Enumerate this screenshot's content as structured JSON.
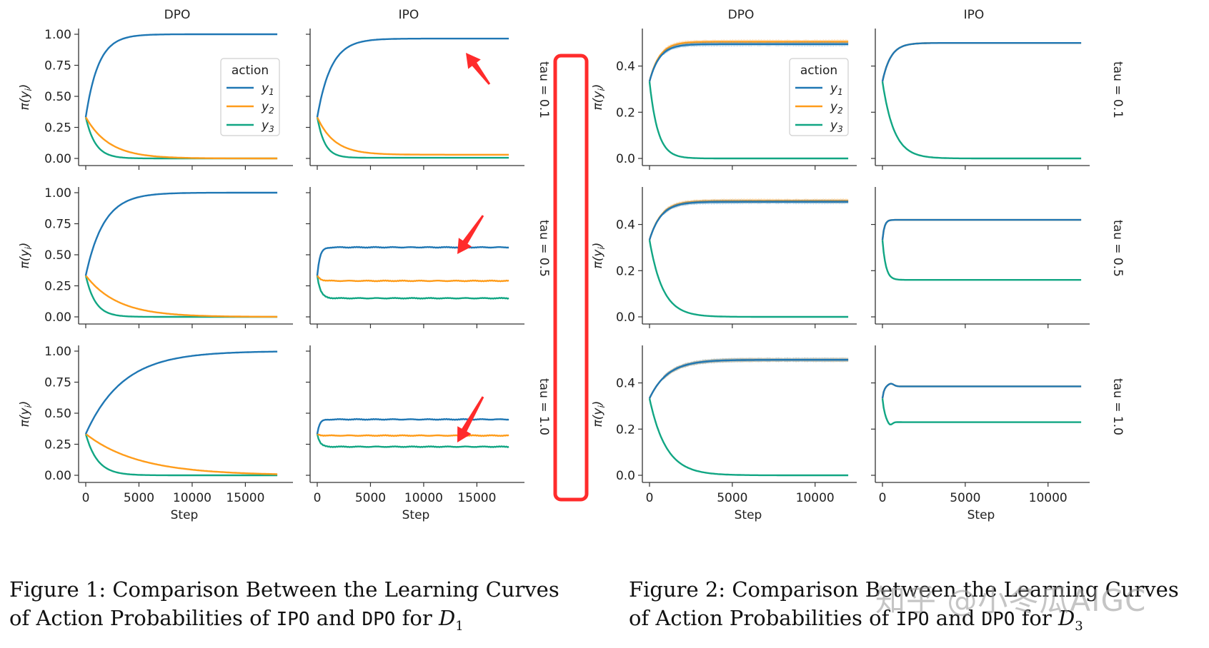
{
  "colors": {
    "y1": "#1f77b4",
    "y2": "#ff9c1a",
    "y3": "#11a683",
    "highlight": "#ff2b2b",
    "axis": "#333333"
  },
  "chart_data": [
    {
      "type": "line",
      "figure": "Figure 1",
      "columns": [
        "DPO",
        "IPO"
      ],
      "rows": [
        "tau = 0.1",
        "tau = 0.5",
        "tau = 1.0"
      ],
      "xlabel": "Step",
      "ylabel": "π(y_i)",
      "xlim": [
        0,
        18000
      ],
      "ylim": [
        0,
        1.0
      ],
      "xticks": [
        0,
        5000,
        10000,
        15000
      ],
      "yticks": [
        0.0,
        0.25,
        0.5,
        0.75,
        1.0
      ],
      "yticklabels": [
        "0.00",
        "0.25",
        "0.50",
        "0.75",
        "1.00"
      ],
      "legend": {
        "title": "action",
        "entries": [
          "y1",
          "y2",
          "y3"
        ],
        "placement": "top-right of row 1 DPO"
      },
      "series_names": [
        "y1",
        "y2",
        "y3"
      ],
      "initial": 0.333,
      "panels": [
        {
          "row": "tau = 0.1",
          "col": "DPO",
          "final": [
            1.0,
            0.0,
            0.0
          ],
          "tau_steps": [
            1200,
            2200,
            900
          ]
        },
        {
          "row": "tau = 0.1",
          "col": "IPO",
          "final": [
            0.965,
            0.03,
            0.005
          ],
          "tau_steps": [
            1300,
            1600,
            700
          ]
        },
        {
          "row": "tau = 0.5",
          "col": "DPO",
          "final": [
            1.0,
            0.0,
            0.0
          ],
          "tau_steps": [
            1700,
            3000,
            900
          ]
        },
        {
          "row": "tau = 0.5",
          "col": "IPO",
          "final": [
            0.56,
            0.29,
            0.15
          ],
          "tau_steps": [
            250,
            300,
            300
          ]
        },
        {
          "row": "tau = 1.0",
          "col": "DPO",
          "final": [
            1.0,
            0.0,
            0.0
          ],
          "tau_steps": [
            3500,
            5000,
            1100
          ]
        },
        {
          "row": "tau = 1.0",
          "col": "IPO",
          "final": [
            0.45,
            0.32,
            0.23
          ],
          "tau_steps": [
            220,
            250,
            250
          ]
        }
      ]
    },
    {
      "type": "line",
      "figure": "Figure 2",
      "columns": [
        "DPO",
        "IPO"
      ],
      "rows": [
        "tau = 0.1",
        "tau = 0.5",
        "tau = 1.0"
      ],
      "xlabel": "Step",
      "ylabel": "π(y_i)",
      "xlim": [
        0,
        12000
      ],
      "ylim": [
        0,
        0.5
      ],
      "xticks": [
        0,
        5000,
        10000
      ],
      "yticks": [
        0.0,
        0.2,
        0.4
      ],
      "yticklabels": [
        "0.0",
        "0.2",
        "0.4"
      ],
      "legend": {
        "title": "action",
        "entries": [
          "y1",
          "y2",
          "y3"
        ],
        "placement": "top-right of row 1 DPO"
      },
      "series_names": [
        "y1",
        "y2",
        "y3"
      ],
      "initial": 0.333,
      "panels": [
        {
          "row": "tau = 0.1",
          "col": "DPO",
          "final": [
            0.495,
            0.505,
            0.0
          ],
          "tau_steps": [
            600,
            600,
            500
          ]
        },
        {
          "row": "tau = 0.1",
          "col": "IPO",
          "final": [
            0.5,
            0.5,
            0.0
          ],
          "tau_steps": [
            500,
            500,
            700
          ]
        },
        {
          "row": "tau = 0.5",
          "col": "DPO",
          "final": [
            0.498,
            0.502,
            0.0
          ],
          "tau_steps": [
            700,
            700,
            800
          ]
        },
        {
          "row": "tau = 0.5",
          "col": "IPO",
          "final": [
            0.42,
            0.42,
            0.16
          ],
          "tau_steps": [
            120,
            120,
            200
          ]
        },
        {
          "row": "tau = 1.0",
          "col": "DPO",
          "final": [
            0.5,
            0.5,
            0.0
          ],
          "tau_steps": [
            1100,
            1100,
            1000
          ]
        },
        {
          "row": "tau = 1.0",
          "col": "IPO",
          "final": [
            0.385,
            0.385,
            0.23
          ],
          "tau_steps": [
            100,
            100,
            150
          ]
        }
      ]
    }
  ],
  "captions": {
    "fig1": {
      "prefix": "Figure 1:",
      "text_a": "Comparison Between the Learning Curves of Action Probabilities of",
      "ipo": "IPO",
      "and": "and",
      "dpo": "DPO",
      "for": "for",
      "dataset": "D",
      "sub": "1"
    },
    "fig2": {
      "prefix": "Figure 2:",
      "text_a": "Comparison Between the Learning Curves of Action Probabilities of",
      "ipo": "IPO",
      "and": "and",
      "dpo": "DPO",
      "for": "for",
      "dataset": "D",
      "sub": "3"
    }
  },
  "watermark": "知乎 @小冬瓜AIGC"
}
